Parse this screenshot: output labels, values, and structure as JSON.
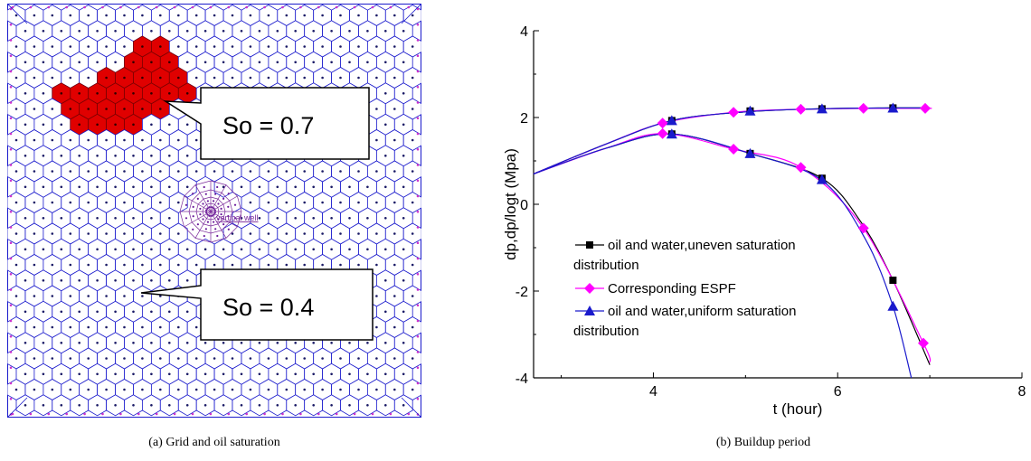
{
  "panel_a": {
    "caption": "(a) Grid and oil saturation",
    "callout_high": "So = 0.7",
    "callout_low": "So = 0.4",
    "well_label": "vertical well",
    "colors": {
      "grid": "#1a1acc",
      "high_saturation": "#e00000",
      "boundary_dots": "#cc33cc",
      "well": "#7a2a9a"
    }
  },
  "panel_b": {
    "caption": "(b) Buildup period"
  },
  "chart_data": {
    "type": "line",
    "title": "",
    "xlabel": "t (hour)",
    "ylabel": "dp,dp/logt (Mpa)",
    "xlim": [
      2.7,
      8
    ],
    "ylim": [
      -4,
      4
    ],
    "xticks": [
      4,
      6,
      8
    ],
    "yticks": [
      -4,
      -2,
      0,
      2,
      4
    ],
    "grid": false,
    "legend_position": "lower-left",
    "series": [
      {
        "name": "oil and water,uneven saturation distribution",
        "color": "#000000",
        "marker": "square",
        "curves": [
          {
            "points": [
              [
                2.7,
                0.7
              ],
              [
                3.5,
                1.4
              ],
              [
                4.2,
                1.93
              ],
              [
                5.0,
                2.13
              ],
              [
                5.8,
                2.2
              ],
              [
                6.6,
                2.22
              ],
              [
                7.0,
                2.22
              ]
            ],
            "markers": [
              [
                4.2,
                1.93
              ],
              [
                5.05,
                2.15
              ],
              [
                5.83,
                2.2
              ],
              [
                6.6,
                2.22
              ]
            ]
          },
          {
            "points": [
              [
                2.7,
                0.7
              ],
              [
                3.5,
                1.3
              ],
              [
                4.2,
                1.62
              ],
              [
                5.05,
                1.17
              ],
              [
                5.83,
                0.6
              ],
              [
                6.25,
                -0.4
              ],
              [
                6.6,
                -1.75
              ],
              [
                7.0,
                -3.7
              ]
            ],
            "markers": [
              [
                4.2,
                1.62
              ],
              [
                5.05,
                1.17
              ],
              [
                5.83,
                0.6
              ],
              [
                6.6,
                -1.75
              ]
            ]
          }
        ]
      },
      {
        "name": "Corresponding ESPF",
        "color": "#ff00ff",
        "marker": "diamond",
        "curves": [
          {
            "points": [
              [
                2.7,
                0.7
              ],
              [
                3.5,
                1.4
              ],
              [
                4.1,
                1.87
              ],
              [
                4.87,
                2.12
              ],
              [
                5.6,
                2.19
              ],
              [
                6.28,
                2.21
              ],
              [
                6.95,
                2.21
              ],
              [
                7.0,
                2.21
              ]
            ],
            "markers": [
              [
                4.1,
                1.87
              ],
              [
                4.87,
                2.12
              ],
              [
                5.6,
                2.19
              ],
              [
                6.28,
                2.21
              ],
              [
                6.95,
                2.21
              ]
            ]
          },
          {
            "points": [
              [
                2.7,
                0.7
              ],
              [
                3.5,
                1.3
              ],
              [
                4.1,
                1.63
              ],
              [
                4.87,
                1.27
              ],
              [
                5.6,
                0.85
              ],
              [
                6.28,
                -0.55
              ],
              [
                6.93,
                -3.2
              ],
              [
                7.0,
                -3.65
              ]
            ],
            "markers": [
              [
                4.1,
                1.63
              ],
              [
                4.87,
                1.27
              ],
              [
                5.6,
                0.85
              ],
              [
                6.28,
                -0.55
              ],
              [
                6.93,
                -3.2
              ]
            ]
          }
        ]
      },
      {
        "name": "oil and water,uniform saturation distribution",
        "color": "#1a1acc",
        "marker": "triangle",
        "curves": [
          {
            "points": [
              [
                2.7,
                0.7
              ],
              [
                3.5,
                1.4
              ],
              [
                4.2,
                1.93
              ],
              [
                5.0,
                2.13
              ],
              [
                5.8,
                2.2
              ],
              [
                6.6,
                2.22
              ],
              [
                7.0,
                2.22
              ]
            ],
            "markers": [
              [
                4.2,
                1.93
              ],
              [
                5.05,
                2.15
              ],
              [
                5.83,
                2.2
              ],
              [
                6.6,
                2.22
              ]
            ]
          },
          {
            "points": [
              [
                2.7,
                0.7
              ],
              [
                3.5,
                1.3
              ],
              [
                4.2,
                1.62
              ],
              [
                5.05,
                1.17
              ],
              [
                5.83,
                0.55
              ],
              [
                6.3,
                -0.8
              ],
              [
                6.6,
                -2.35
              ],
              [
                6.8,
                -4.0
              ]
            ],
            "markers": [
              [
                4.2,
                1.62
              ],
              [
                5.05,
                1.17
              ],
              [
                5.83,
                0.57
              ],
              [
                6.6,
                -2.35
              ]
            ]
          }
        ]
      }
    ]
  }
}
